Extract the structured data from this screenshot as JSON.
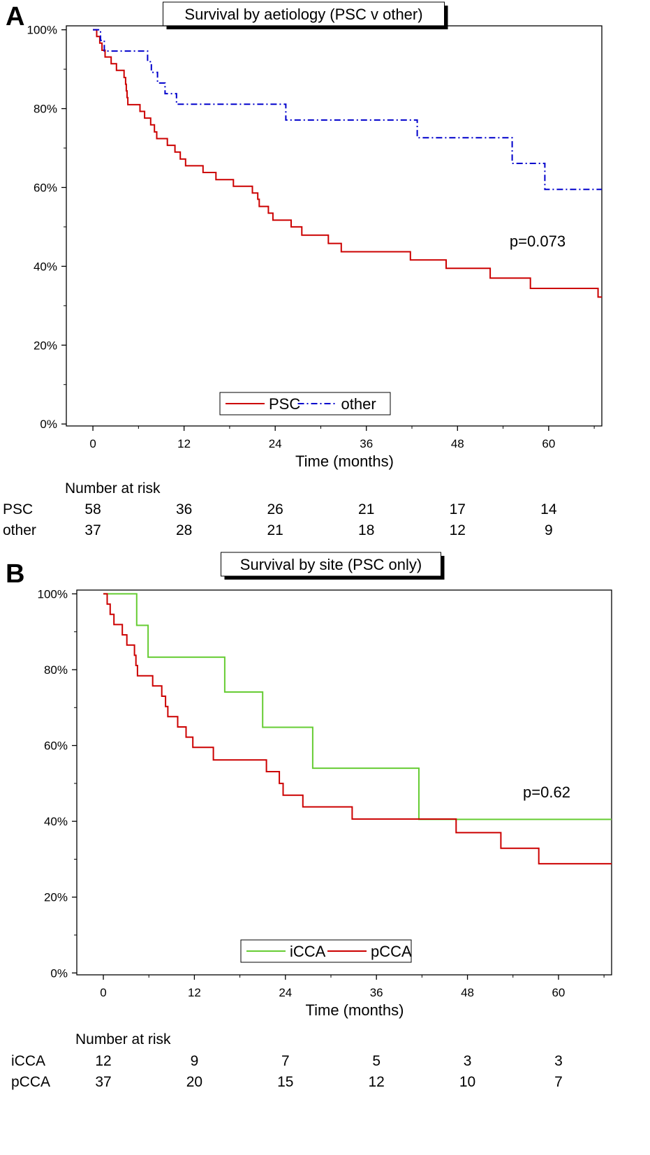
{
  "chart_data": [
    {
      "type": "line",
      "panel_label": "A",
      "title": "Survival by aetiology (PSC v other)",
      "xlabel": "Time (months)",
      "ylabel": "",
      "xlim": [
        -3.5,
        67
      ],
      "ylim": [
        -0.5,
        101
      ],
      "x_ticks": [
        0,
        12,
        24,
        36,
        48,
        60
      ],
      "x_tick_labels": [
        "0",
        "12",
        "24",
        "36",
        "48",
        "60"
      ],
      "y_ticks": [
        0,
        20,
        40,
        60,
        80,
        100
      ],
      "y_tick_labels": [
        "0%",
        "20%",
        "40%",
        "60%",
        "80%",
        "100%"
      ],
      "legend_position": "bottom-center",
      "annotation": "p=0.073",
      "series": [
        {
          "name": "PSC",
          "color": "#cc0000",
          "style": "solid",
          "steps": [
            [
              0,
              100
            ],
            [
              0.5,
              98.3
            ],
            [
              0.9,
              96.6
            ],
            [
              1.2,
              94.8
            ],
            [
              1.6,
              93.1
            ],
            [
              2.4,
              91.4
            ],
            [
              3.1,
              89.7
            ],
            [
              4.1,
              87.9
            ],
            [
              4.3,
              86.2
            ],
            [
              4.4,
              84.5
            ],
            [
              4.5,
              82.8
            ],
            [
              4.6,
              81.0
            ],
            [
              6.2,
              79.3
            ],
            [
              6.8,
              77.6
            ],
            [
              7.6,
              75.9
            ],
            [
              8.1,
              74.1
            ],
            [
              8.4,
              72.4
            ],
            [
              9.8,
              70.7
            ],
            [
              10.8,
              69.0
            ],
            [
              11.5,
              67.2
            ],
            [
              12.2,
              65.5
            ],
            [
              14.5,
              63.8
            ],
            [
              16.2,
              62.0
            ],
            [
              18.5,
              60.3
            ],
            [
              21,
              58.6
            ],
            [
              21.7,
              57.0
            ],
            [
              21.9,
              55.2
            ],
            [
              23.1,
              53.5
            ],
            [
              23.7,
              51.7
            ],
            [
              26.1,
              50.0
            ],
            [
              27.5,
              47.9
            ],
            [
              31,
              45.8
            ],
            [
              32.7,
              43.7
            ],
            [
              41.8,
              41.6
            ],
            [
              46.5,
              39.5
            ],
            [
              52.3,
              37.0
            ],
            [
              57.6,
              34.4
            ],
            [
              66.5,
              32.2
            ],
            [
              67,
              32.2
            ]
          ]
        },
        {
          "name": "other",
          "color": "#0000cc",
          "style": "dash-dot",
          "steps": [
            [
              0,
              100
            ],
            [
              1,
              97.3
            ],
            [
              1.5,
              94.6
            ],
            [
              7.2,
              91.9
            ],
            [
              7.7,
              89.2
            ],
            [
              8.5,
              86.5
            ],
            [
              9.5,
              83.8
            ],
            [
              11,
              81.1
            ],
            [
              25.4,
              77.1
            ],
            [
              42.7,
              72.6
            ],
            [
              55.2,
              66.1
            ],
            [
              59.5,
              59.5
            ],
            [
              67,
              59.5
            ]
          ]
        }
      ],
      "risk_table": {
        "header": "Number at risk",
        "times": [
          0,
          12,
          24,
          36,
          48,
          60
        ],
        "rows": [
          {
            "label": "PSC",
            "values": [
              "58",
              "36",
              "26",
              "21",
              "17",
              "14"
            ]
          },
          {
            "label": "other",
            "values": [
              "37",
              "28",
              "21",
              "18",
              "12",
              "9"
            ]
          }
        ]
      }
    },
    {
      "type": "line",
      "panel_label": "B",
      "title": "Survival by site (PSC only)",
      "xlabel": "Time (months)",
      "ylabel": "",
      "xlim": [
        -3.5,
        67
      ],
      "ylim": [
        -0.5,
        101
      ],
      "x_ticks": [
        0,
        12,
        24,
        36,
        48,
        60
      ],
      "x_tick_labels": [
        "0",
        "12",
        "24",
        "36",
        "48",
        "60"
      ],
      "y_ticks": [
        0,
        20,
        40,
        60,
        80,
        100
      ],
      "y_tick_labels": [
        "0%",
        "20%",
        "40%",
        "60%",
        "80%",
        "100%"
      ],
      "legend_position": "bottom-center",
      "annotation": "p=0.62",
      "series": [
        {
          "name": "iCCA",
          "color": "#66cc33",
          "style": "solid",
          "steps": [
            [
              0,
              100
            ],
            [
              4.4,
              91.7
            ],
            [
              5.9,
              83.3
            ],
            [
              16,
              74.1
            ],
            [
              21,
              64.8
            ],
            [
              27.6,
              54.0
            ],
            [
              41.6,
              40.5
            ],
            [
              67,
              40.5
            ]
          ]
        },
        {
          "name": "pCCA",
          "color": "#cc0000",
          "style": "solid",
          "steps": [
            [
              0,
              100
            ],
            [
              0.5,
              97.3
            ],
            [
              0.9,
              94.6
            ],
            [
              1.4,
              91.9
            ],
            [
              2.5,
              89.2
            ],
            [
              3.1,
              86.5
            ],
            [
              4.1,
              83.8
            ],
            [
              4.3,
              81.1
            ],
            [
              4.5,
              78.4
            ],
            [
              6.5,
              75.7
            ],
            [
              7.7,
              73.0
            ],
            [
              8.2,
              70.3
            ],
            [
              8.5,
              67.6
            ],
            [
              9.8,
              64.9
            ],
            [
              10.9,
              62.2
            ],
            [
              11.8,
              59.5
            ],
            [
              14.5,
              56.2
            ],
            [
              21.5,
              53.1
            ],
            [
              23.2,
              50.0
            ],
            [
              23.7,
              46.9
            ],
            [
              26.3,
              43.8
            ],
            [
              32.8,
              40.6
            ],
            [
              46.5,
              37.0
            ],
            [
              52.4,
              32.9
            ],
            [
              57.4,
              28.8
            ],
            [
              67,
              28.8
            ]
          ]
        }
      ],
      "risk_table": {
        "header": "Number at risk",
        "times": [
          0,
          12,
          24,
          36,
          48,
          60
        ],
        "rows": [
          {
            "label": "iCCA",
            "values": [
              "12",
              "9",
              "7",
              "5",
              "3",
              "3"
            ]
          },
          {
            "label": "pCCA",
            "values": [
              "37",
              "20",
              "15",
              "12",
              "10",
              "7"
            ]
          }
        ]
      }
    }
  ]
}
